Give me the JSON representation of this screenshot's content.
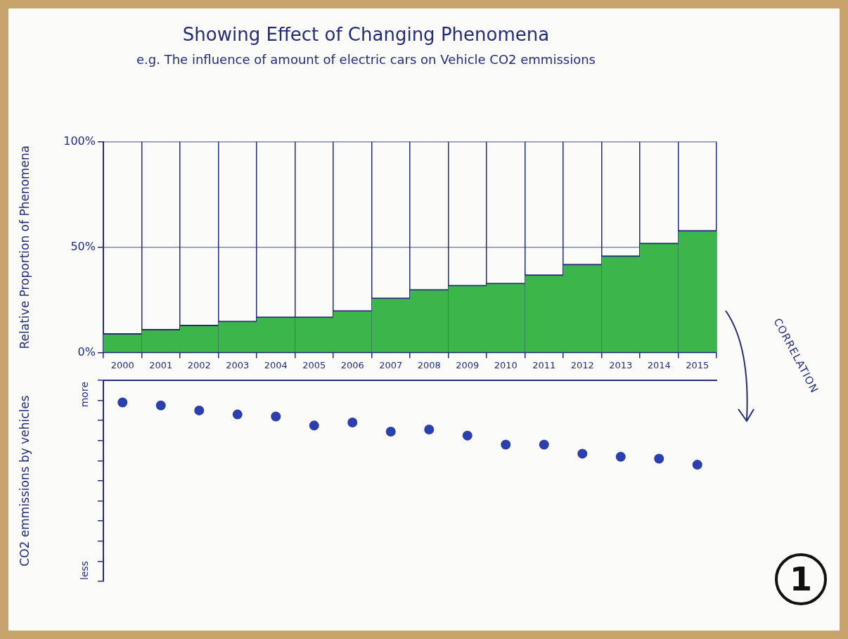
{
  "chart_data": [
    {
      "type": "bar",
      "title": "Showing Effect of Changing Phenomena",
      "subtitle": "e.g. The influence of amount of electric cars on Vehicle CO2 emmissions",
      "y_label": "Relative Proportion of Phenomena",
      "categories": [
        "2000",
        "2001",
        "2002",
        "2003",
        "2004",
        "2005",
        "2006",
        "2007",
        "2008",
        "2009",
        "2010",
        "2011",
        "2012",
        "2013",
        "2014",
        "2015"
      ],
      "values": [
        9,
        11,
        13,
        15,
        17,
        17,
        20,
        26,
        30,
        32,
        33,
        37,
        42,
        46,
        52,
        58
      ],
      "color": "#3cb54a",
      "ylim": [
        0,
        100
      ],
      "yticks": [
        {
          "value": 0,
          "label": "0%"
        },
        {
          "value": 50,
          "label": "50%"
        },
        {
          "value": 100,
          "label": "100%"
        }
      ],
      "grid": true,
      "annotations": [
        "CORRELATION",
        "1"
      ]
    },
    {
      "type": "scatter",
      "y_label": "CO2 emmissions by vehicles",
      "categories": [
        null,
        null,
        null,
        null,
        null,
        null,
        null,
        null,
        null,
        null,
        null,
        null,
        null,
        null,
        null,
        null
      ],
      "values": [
        8.9,
        8.75,
        8.5,
        8.3,
        8.2,
        7.75,
        7.9,
        7.45,
        7.55,
        7.25,
        6.8,
        6.8,
        6.35,
        6.2,
        6.1,
        5.8
      ],
      "color": "#2b3fae",
      "marker": "circle",
      "ylim": [
        0,
        10
      ],
      "yticks": [
        0,
        1,
        2,
        3,
        4,
        5,
        6,
        7,
        8,
        9,
        10
      ],
      "grid": false,
      "tick_labels": false,
      "annotations": [
        "more",
        "less"
      ]
    }
  ]
}
